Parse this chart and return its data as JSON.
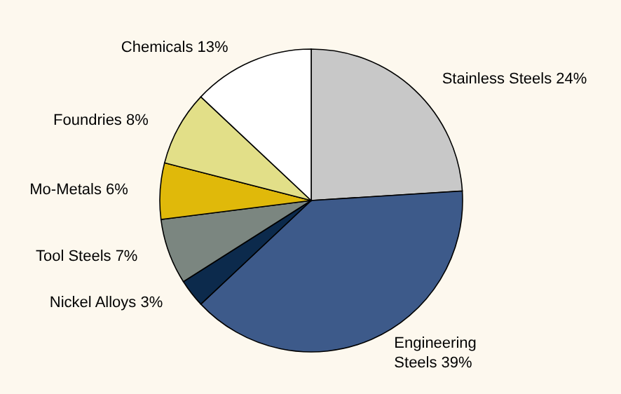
{
  "chart_data": {
    "type": "pie",
    "categories": [
      "Stainless Steels 24%",
      "Engineering Steels 39%",
      "Nickel Alloys 3%",
      "Tool Steels 7%",
      "Mo-Metals 6%",
      "Foundries 8%",
      "Chemicals 13%"
    ],
    "values": [
      24,
      39,
      3,
      7,
      6,
      8,
      13
    ],
    "colors": [
      "#c8c8c8",
      "#3d5a8a",
      "#0c2a4c",
      "#7b8680",
      "#e0b90a",
      "#e2df88",
      "#ffffff"
    ]
  }
}
